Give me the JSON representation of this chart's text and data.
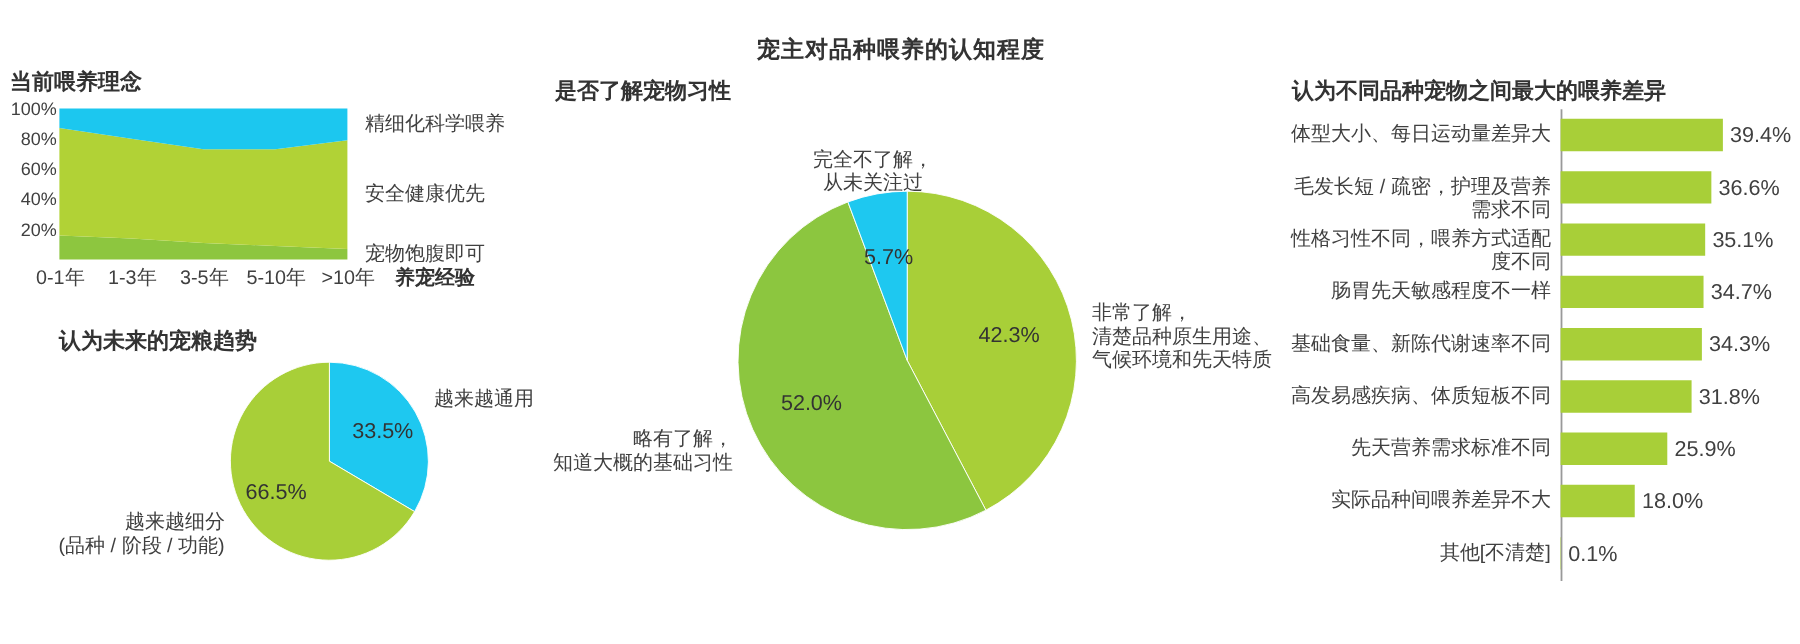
{
  "chart_data": [
    {
      "type": "area",
      "title": "当前喂养理念",
      "annotations": [
        "宠主对品种喂养的认知程度"
      ],
      "stacked": true,
      "categories": [
        "0-1年",
        "1-3年",
        "3-5年",
        "5-10年",
        ">10年"
      ],
      "xlabel": "养宠经验",
      "ylim": [
        0,
        100
      ],
      "yticks": [
        {
          "value": 20,
          "label": "20%"
        },
        {
          "value": 40,
          "label": "40%"
        },
        {
          "value": 60,
          "label": "60%"
        },
        {
          "value": 80,
          "label": "80%"
        },
        {
          "value": 100,
          "label": "100%"
        }
      ],
      "legend": false,
      "grid": false,
      "series": [
        {
          "name": "宠物饱腹即可",
          "color": "#8dc63f",
          "values": [
            16,
            14,
            11,
            9,
            7
          ]
        },
        {
          "name": "安全健康优先",
          "color": "#b1d236",
          "values": [
            71,
            66,
            62,
            64,
            72
          ]
        },
        {
          "name": "精细化科学喂养",
          "color": "#1cc7ef",
          "values": [
            13,
            20,
            27,
            27,
            21
          ]
        }
      ]
    },
    {
      "type": "pie",
      "title": "认为未来的宠粮趋势",
      "categories": [
        "越来越通用",
        "越来越细分(品种 / 阶段 / 功能)"
      ],
      "values": [
        33.5,
        66.5
      ],
      "colors": [
        "#1ec8f0",
        "#a8cf38"
      ],
      "value_labels": [
        "33.5%",
        "66.5%"
      ]
    },
    {
      "type": "pie",
      "title": "是否了解宠物习性",
      "categories": [
        "非常了解，清楚品种原生用途、气候环境和先天特质",
        "略有了解，知道大概的基础习性",
        "完全不了解，从未关注过"
      ],
      "values": [
        42.3,
        52.0,
        5.7
      ],
      "colors": [
        "#a8cf38",
        "#8cc63f",
        "#1ec8f0"
      ],
      "value_labels": [
        "42.3%",
        "52.0%",
        "5.7%"
      ]
    },
    {
      "type": "bar",
      "title": "认为不同品种宠物之间最大的喂养差异",
      "orientation": "horizontal",
      "categories": [
        "体型大小、每日运动量差异大",
        "毛发长短 / 疏密，护理及营养需求不同",
        "性格习性不同，喂养方式适配度不同",
        "肠胃先天敏感程度不一样",
        "基础食量、新陈代谢速率不同",
        "高发易感疾病、体质短板不同",
        "先天营养需求标准不同",
        "实际品种间喂养差异不大",
        "其他[不清楚]"
      ],
      "values": [
        39.4,
        36.6,
        35.1,
        34.7,
        34.3,
        31.8,
        25.9,
        18.0,
        0.1
      ],
      "color": "#a8cf38",
      "value_labels": [
        "39.4%",
        "36.6%",
        "35.1%",
        "34.7%",
        "34.3%",
        "31.8%",
        "25.9%",
        "18.0%",
        "0.1%"
      ]
    }
  ]
}
